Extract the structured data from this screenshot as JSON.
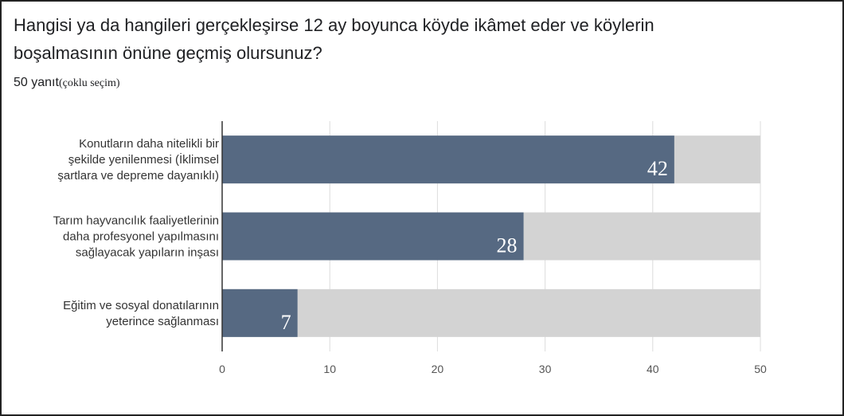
{
  "question": {
    "title": "Hangisi ya da hangileri gerçekleşirse 12 ay boyunca köyde ikâmet eder ve köylerin boşalmasının önüne geçmiş olursunuz?",
    "responses": "50 yanıt",
    "note": "(çoklu seçim)"
  },
  "chart_data": {
    "type": "bar",
    "orientation": "horizontal",
    "categories": [
      [
        "Konutların daha nitelikli bir",
        "şekilde yenilenmesi (İklimsel",
        "şartlara ve depreme dayanıklı)"
      ],
      [
        "Tarım hayvancılık faaliyetlerinin",
        "daha profesyonel yapılmasını",
        "sağlayacak yapıların inşası"
      ],
      [
        "Eğitim ve sosyal donatılarının",
        "yeterince sağlanması"
      ]
    ],
    "values": [
      42,
      28,
      7
    ],
    "xlim": [
      0,
      50
    ],
    "xticks": [
      0,
      10,
      20,
      30,
      40,
      50
    ],
    "grid": true,
    "colors": {
      "bar": "#566982",
      "track": "#d3d3d3",
      "grid": "#dcdcdc",
      "axis": "#333333"
    }
  }
}
